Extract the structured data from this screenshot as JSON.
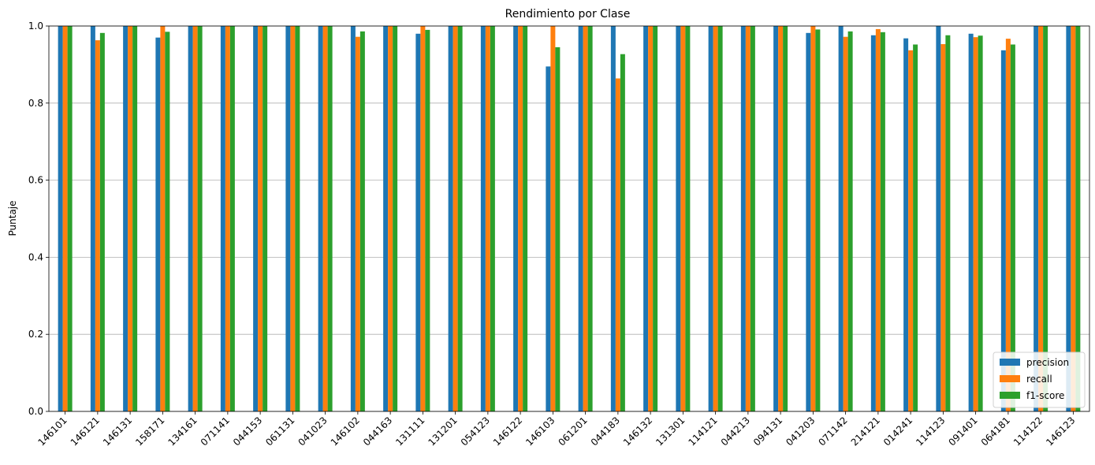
{
  "chart_data": {
    "type": "bar",
    "title": "Rendimiento por Clase",
    "xlabel": "",
    "ylabel": "Puntaje",
    "ylim": [
      0,
      1
    ],
    "yticks": [
      "0.0",
      "0.2",
      "0.4",
      "0.6",
      "0.8",
      "1.0"
    ],
    "grid": "y",
    "legend_position": "bottom-right",
    "categories": [
      "146101",
      "146121",
      "146131",
      "158171",
      "134161",
      "071141",
      "044153",
      "061131",
      "041023",
      "146102",
      "044163",
      "131111",
      "131201",
      "054123",
      "146122",
      "146103",
      "061201",
      "044183",
      "146132",
      "131301",
      "114121",
      "044213",
      "094131",
      "041203",
      "071142",
      "214121",
      "014241",
      "114123",
      "091401",
      "064181",
      "114122",
      "146123"
    ],
    "series": [
      {
        "name": "precision",
        "color": "#1f77b4",
        "values": [
          1.0,
          1.0,
          1.0,
          0.97,
          1.0,
          1.0,
          1.0,
          1.0,
          1.0,
          1.0,
          1.0,
          0.98,
          1.0,
          1.0,
          1.0,
          0.895,
          1.0,
          1.0,
          1.0,
          1.0,
          1.0,
          1.0,
          1.0,
          0.982,
          1.0,
          0.976,
          0.968,
          1.0,
          0.98,
          0.937,
          1.0,
          1.0
        ]
      },
      {
        "name": "recall",
        "color": "#ff7f0e",
        "values": [
          1.0,
          0.963,
          1.0,
          1.0,
          1.0,
          1.0,
          1.0,
          1.0,
          1.0,
          0.972,
          1.0,
          1.0,
          1.0,
          1.0,
          1.0,
          1.0,
          1.0,
          0.864,
          1.0,
          1.0,
          1.0,
          1.0,
          1.0,
          1.0,
          0.972,
          0.992,
          0.937,
          0.953,
          0.971,
          0.967,
          1.0,
          1.0
        ]
      },
      {
        "name": "f1-score",
        "color": "#2ca02c",
        "values": [
          1.0,
          0.982,
          1.0,
          0.985,
          1.0,
          1.0,
          1.0,
          1.0,
          1.0,
          0.986,
          1.0,
          0.99,
          1.0,
          1.0,
          1.0,
          0.945,
          1.0,
          0.927,
          1.0,
          1.0,
          1.0,
          1.0,
          1.0,
          0.991,
          0.986,
          0.984,
          0.952,
          0.976,
          0.975,
          0.952,
          1.0,
          1.0
        ]
      }
    ]
  }
}
